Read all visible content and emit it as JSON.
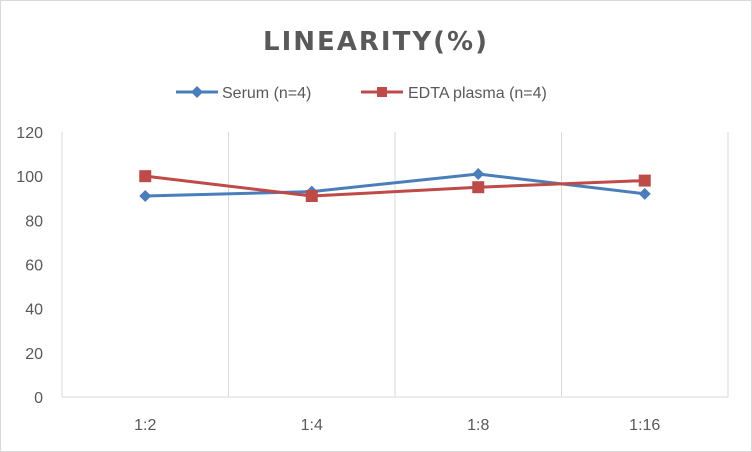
{
  "chart_data": {
    "type": "line",
    "title": "LINEARITY(%)",
    "xlabel": "",
    "ylabel": "",
    "categories": [
      "1:2",
      "1:4",
      "1:8",
      "1:16"
    ],
    "ylim": [
      0,
      120
    ],
    "yticks": [
      0,
      20,
      40,
      60,
      80,
      100,
      120
    ],
    "grid": "vertical",
    "legend_position": "top",
    "series": [
      {
        "name": "Serum (n=4)",
        "marker": "diamond",
        "color": "#4a7ebb",
        "values": [
          91,
          93,
          101,
          92
        ]
      },
      {
        "name": "EDTA plasma (n=4)",
        "marker": "square",
        "color": "#be4b48",
        "values": [
          100,
          91,
          95,
          98
        ]
      }
    ]
  }
}
